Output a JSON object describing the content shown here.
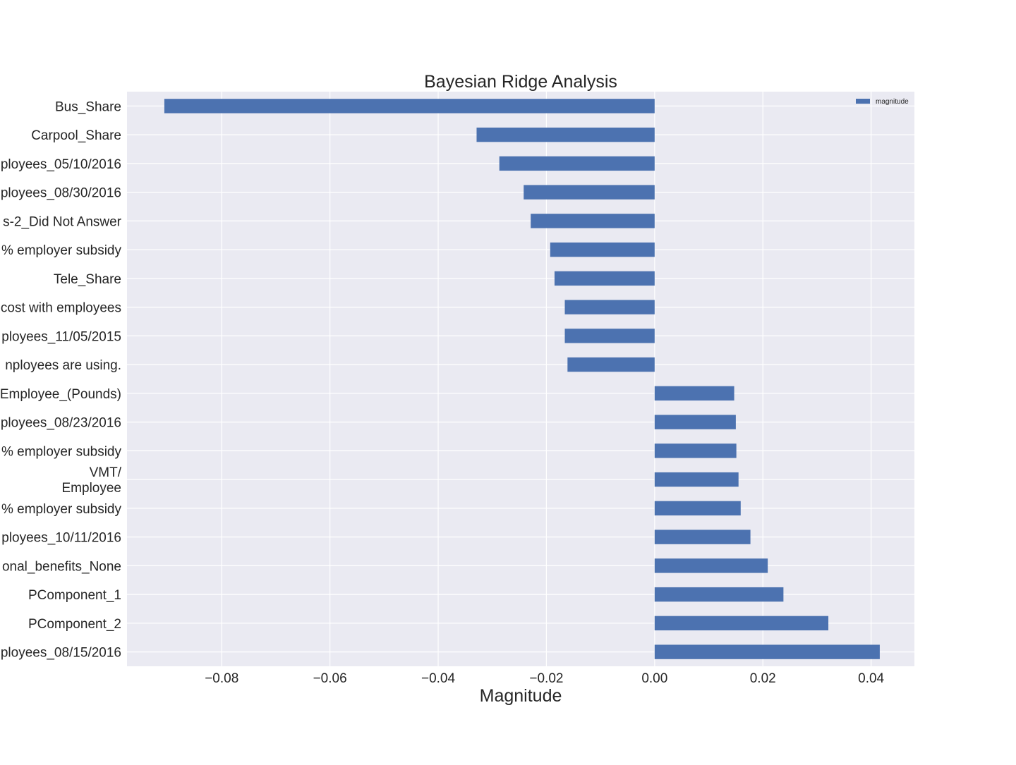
{
  "chart_data": {
    "type": "bar",
    "orientation": "horizontal",
    "title": "Bayesian Ridge Analysis",
    "xlabel": "Magnitude",
    "ylabel": "",
    "xlim": [
      -0.0975,
      0.048
    ],
    "xticks": [
      -0.08,
      -0.06,
      -0.04,
      -0.02,
      0.0,
      0.02,
      0.04
    ],
    "xtick_labels": [
      "−0.08",
      "−0.06",
      "−0.04",
      "−0.02",
      "0.00",
      "0.02",
      "0.04"
    ],
    "grid": true,
    "legend": {
      "position": "top-right",
      "entries": [
        "magnitude"
      ]
    },
    "categories": [
      "Bus_Share",
      "Carpool_Share",
      "ployees_05/10/2016",
      "ployees_08/30/2016",
      "s-2_Did Not Answer",
      "% employer subsidy",
      "Tele_Share",
      "cost with employees",
      "ployees_11/05/2015",
      "nployees are using.",
      "Employee_(Pounds)",
      "ployees_08/23/2016",
      "% employer subsidy",
      "VMT/\nEmployee",
      "% employer subsidy",
      "ployees_10/11/2016",
      "onal_benefits_None",
      "PComponent_1",
      "PComponent_2",
      "ployees_08/15/2016"
    ],
    "series": [
      {
        "name": "magnitude",
        "color": "#4c72b0",
        "values": [
          -0.0906,
          -0.0329,
          -0.0287,
          -0.0242,
          -0.0229,
          -0.0193,
          -0.0185,
          -0.0166,
          -0.0166,
          -0.0161,
          0.0147,
          0.015,
          0.0151,
          0.0155,
          0.0159,
          0.0177,
          0.0209,
          0.0238,
          0.0321,
          0.0416
        ]
      }
    ]
  },
  "colors": {
    "plot_background": "#eaeaf2",
    "grid": "#ffffff",
    "bar": "#4c72b0",
    "text": "#262626"
  }
}
